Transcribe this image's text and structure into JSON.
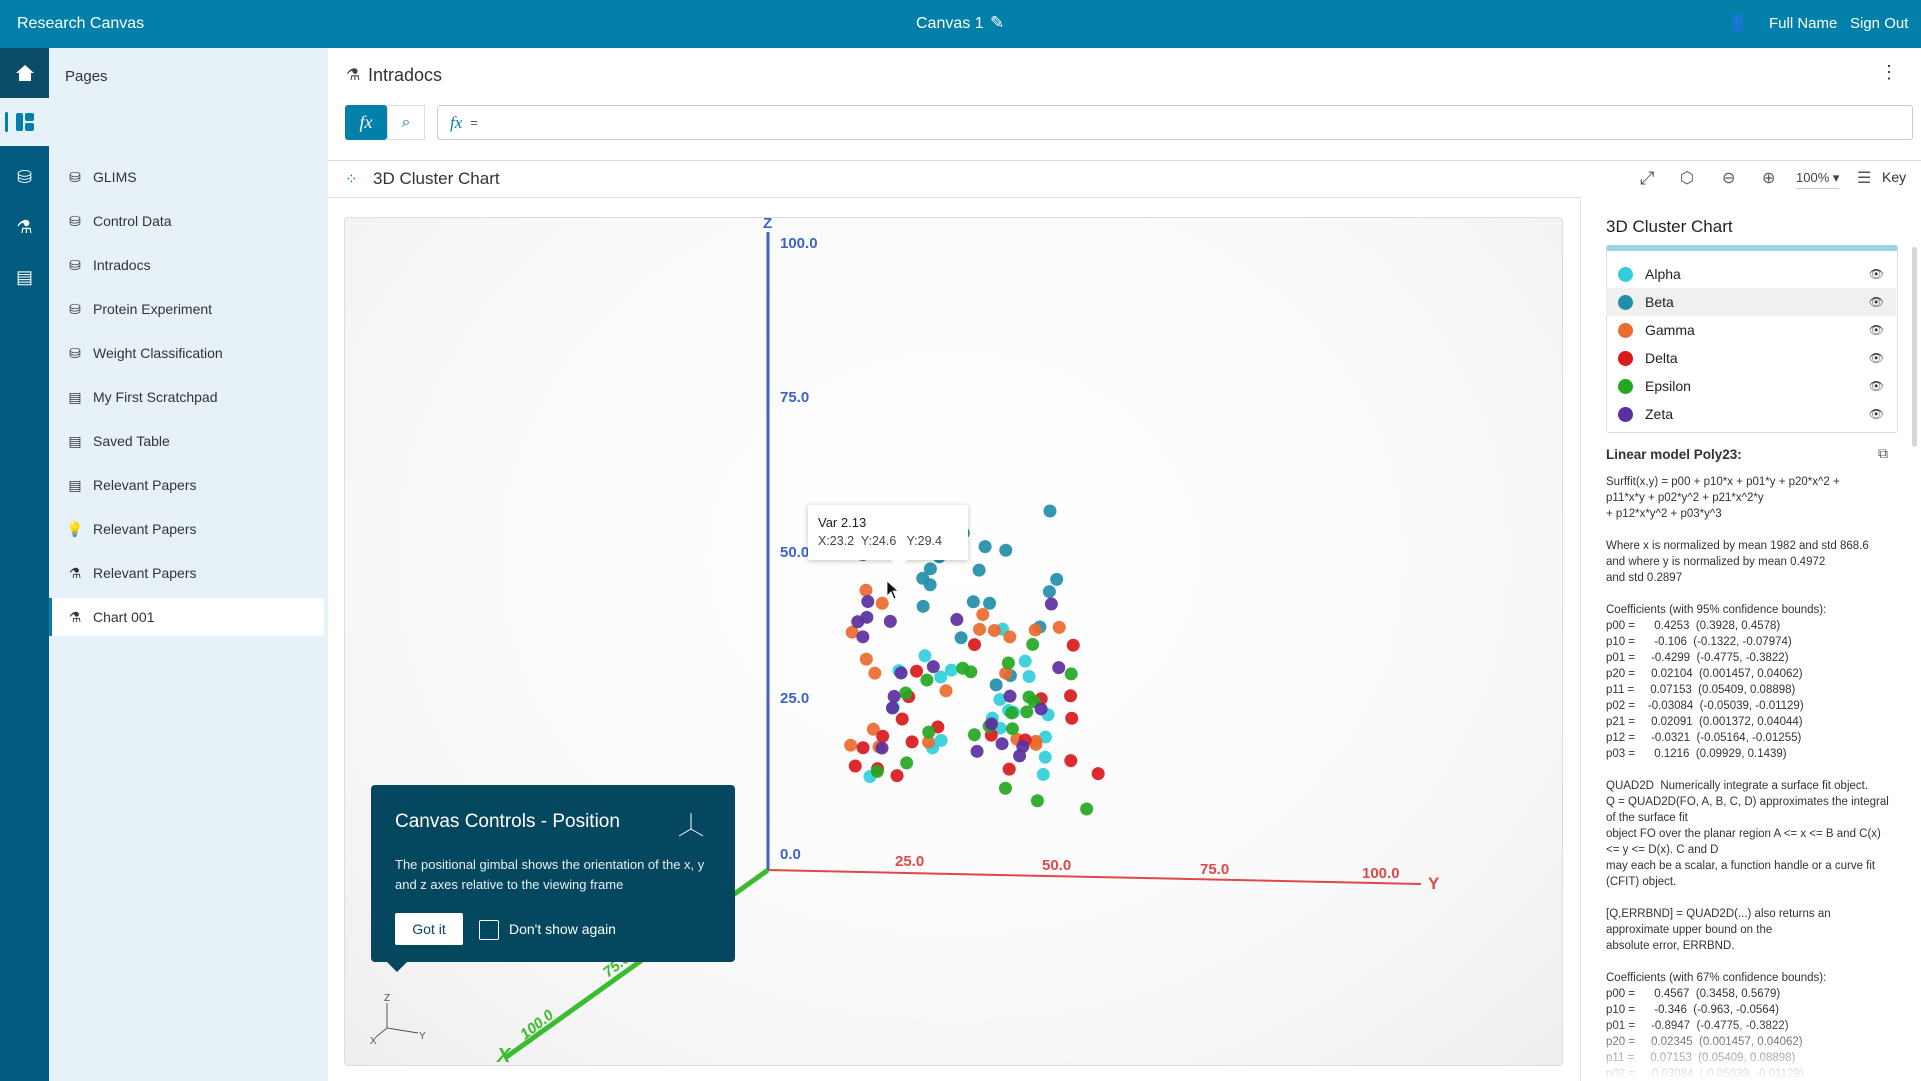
{
  "app": {
    "title": "Research Canvas",
    "canvas_name": "Canvas 1",
    "user": "Full Name",
    "sign_out": "Sign Out"
  },
  "rail": {
    "items": [
      "home-icon",
      "pages-icon",
      "add-data-icon",
      "add-experiment-icon",
      "add-notebook-icon"
    ]
  },
  "pages": {
    "title": "Pages",
    "items": [
      {
        "label": "GLIMS",
        "icon": "database-icon"
      },
      {
        "label": "Control Data",
        "icon": "database-icon"
      },
      {
        "label": "Intradocs",
        "icon": "database-icon"
      },
      {
        "label": "Protein Experiment",
        "icon": "database-icon"
      },
      {
        "label": "Weight Classification",
        "icon": "database-icon"
      },
      {
        "label": "My First Scratchpad",
        "icon": "notebook-icon"
      },
      {
        "label": "Saved Table",
        "icon": "notebook-icon"
      },
      {
        "label": "Relevant Papers",
        "icon": "notebook-icon"
      },
      {
        "label": "Relevant Papers",
        "icon": "lightbulb-icon"
      },
      {
        "label": "Relevant Papers",
        "icon": "flask-icon"
      },
      {
        "label": "Chart 001",
        "icon": "flask-icon",
        "selected": true
      }
    ]
  },
  "main": {
    "title": "Intradocs",
    "formula_prefix": "fx",
    "formula_value": "=",
    "fx_label": "fx"
  },
  "chart": {
    "title": "3D Cluster Chart",
    "zoom": "100%",
    "key_label": "Key",
    "z_axis": {
      "label": "Z",
      "ticks": [
        "100.0",
        "75.0",
        "50.0",
        "25.0",
        "0.0"
      ]
    },
    "y_axis": {
      "label": "Y",
      "ticks": [
        "25.0",
        "50.0",
        "75.0",
        "100.0"
      ]
    },
    "x_axis": {
      "label": "X",
      "ticks": [
        "75.0",
        "100.0"
      ]
    },
    "tooltip": {
      "title": "Var 2.13",
      "values": "X:23.2  Y:24.6   Y:29.4"
    },
    "gimbal": {
      "x": "X",
      "y": "Y",
      "z": "Z"
    }
  },
  "popup": {
    "title": "Canvas Controls - Position",
    "body": "The positional gimbal shows the orientation of the x, y and z axes relative to the viewing frame",
    "got_it": "Got it",
    "dont_show": "Don't show again"
  },
  "panel": {
    "title": "3D Cluster Chart",
    "series": [
      {
        "name": "Alpha",
        "color": "#2fd0da"
      },
      {
        "name": "Beta",
        "color": "#218ea8"
      },
      {
        "name": "Gamma",
        "color": "#ec6a2e"
      },
      {
        "name": "Delta",
        "color": "#d9191c"
      },
      {
        "name": "Epsilon",
        "color": "#23a823"
      },
      {
        "name": "Zeta",
        "color": "#5b2fa0"
      }
    ],
    "model_title": "Linear model Poly23:",
    "text1": "Surffit(x,y) = p00 + p10*x + p01*y + p20*x^2 +\np11*x*y + p02*y^2 + p21*x^2*y\n+ p12*x*y^2 + p03*y^3\n\nWhere x is normalized by mean 1982 and std 868.6\nand where y is normalized by mean 0.4972\nand std 0.2897\n\nCoefficients (with 95% confidence bounds):\np00 =      0.4253  (0.3928, 0.4578)\np10 =      -0.106  (-0.1322, -0.07974)\np01 =     -0.4299  (-0.4775, -0.3822)\np20 =     0.02104  (0.001457, 0.04062)\np11 =     0.07153  (0.05409, 0.08898)\np02 =    -0.03084  (-0.05039, -0.01129)\np21 =     0.02091  (0.001372, 0.04044)\np12 =     -0.0321  (-0.05164, -0.01255)\np03 =      0.1216  (0.09929, 0.1439)\n\nQUAD2D  Numerically integrate a surface fit object.\nQ = QUAD2D(FO, A, B, C, D) approximates the integral\nof the surface fit\nobject FO over the planar region A <= x <= B and C(x)\n<= y <= D(x). C and D\nmay each be a scalar, a function handle or a curve fit\n(CFIT) object.\n\n[Q,ERRBND] = QUAD2D(...) also returns an\napproximate upper bound on the\nabsolute error, ERRBND.\n\nCoefficients (with 67% confidence bounds):\np00 =      0.4567  (0.3458, 0.5679)\np10 =      -0.346  (-0.963, -0.0564)\np01 =     -0.8947  (-0.4775, -0.3822)\np20 =     0.02345  (0.001457, 0.04062)\np11 =     0.07153  (0.05409, 0.08898)\np02 =    -0.03084  (-0.05039, -0.01129)"
  }
}
